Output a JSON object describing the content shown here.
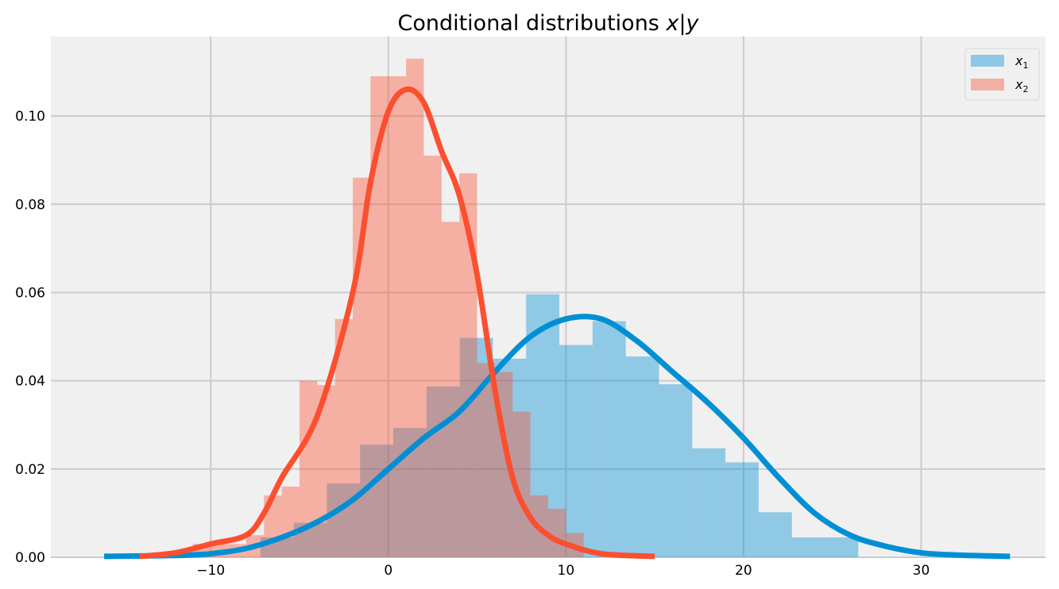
{
  "chart_data": {
    "type": "histogram+kde",
    "title": "Conditional distributions x|y",
    "title_prefix": "Conditional distributions ",
    "title_math": "x|y",
    "xlabel": "",
    "ylabel": "",
    "xlim": [
      -19,
      37
    ],
    "ylim": [
      0,
      0.118
    ],
    "grid": true,
    "legend_position": "top-right",
    "x_ticks": [
      -10,
      0,
      10,
      20,
      30
    ],
    "x_tick_labels": [
      "−10",
      "0",
      "10",
      "20",
      "30"
    ],
    "y_ticks": [
      0.0,
      0.02,
      0.04,
      0.06,
      0.08,
      0.1
    ],
    "y_tick_labels": [
      "0.00",
      "0.02",
      "0.04",
      "0.06",
      "0.08",
      "0.10"
    ],
    "series": [
      {
        "name": "x1",
        "legend_symbol": "x",
        "legend_sub": "1",
        "color": "#008fd5",
        "bar_color": "#8fc8e6",
        "hist_bin_edges": [
          -7.2,
          -5.33,
          -3.46,
          -1.59,
          0.28,
          2.15,
          4.02,
          5.89,
          7.76,
          9.63,
          11.5,
          13.37,
          15.24,
          17.11,
          18.98,
          20.85,
          22.72,
          24.59,
          26.46
        ],
        "hist_values": [
          0.0045,
          0.0078,
          0.0167,
          0.0255,
          0.0293,
          0.0387,
          0.0497,
          0.045,
          0.0596,
          0.0481,
          0.0535,
          0.0455,
          0.0392,
          0.0247,
          0.0215,
          0.0102,
          0.0045,
          0.0045
        ],
        "kde_x": [
          -16,
          -12,
          -10,
          -8,
          -6,
          -4,
          -2,
          0,
          2,
          4,
          6,
          8,
          10,
          12,
          14,
          16,
          18,
          20,
          22,
          24,
          26,
          28,
          30,
          32,
          35
        ],
        "kde_y": [
          0.0002,
          0.0004,
          0.0008,
          0.002,
          0.0045,
          0.008,
          0.013,
          0.02,
          0.027,
          0.033,
          0.042,
          0.05,
          0.054,
          0.054,
          0.049,
          0.042,
          0.035,
          0.027,
          0.018,
          0.01,
          0.005,
          0.0025,
          0.001,
          0.0005,
          0.0002
        ]
      },
      {
        "name": "x2",
        "legend_symbol": "x",
        "legend_sub": "2",
        "color": "#fc4f30",
        "bar_color": "#f2b0a4",
        "hist_bin_edges": [
          -11,
          -10,
          -9,
          -8,
          -7,
          -6,
          -5,
          -4,
          -3,
          -2,
          -1,
          0,
          1,
          2,
          3,
          4,
          5,
          6,
          7,
          8,
          9,
          10,
          11
        ],
        "hist_values": [
          0.003,
          0.003,
          0.003,
          0.005,
          0.014,
          0.016,
          0.04,
          0.039,
          0.054,
          0.086,
          0.109,
          0.109,
          0.113,
          0.091,
          0.076,
          0.087,
          0.044,
          0.042,
          0.033,
          0.014,
          0.011,
          0.0055
        ],
        "kde_x": [
          -14,
          -12,
          -10,
          -8,
          -7,
          -6,
          -4,
          -2,
          -1,
          0,
          1,
          2,
          3,
          4,
          5,
          6,
          7,
          8,
          9,
          10,
          12,
          15
        ],
        "kde_y": [
          0.0002,
          0.001,
          0.003,
          0.005,
          0.01,
          0.018,
          0.032,
          0.06,
          0.085,
          0.101,
          0.106,
          0.103,
          0.092,
          0.082,
          0.064,
          0.038,
          0.018,
          0.009,
          0.005,
          0.003,
          0.0008,
          0.0002
        ]
      }
    ],
    "colors": {
      "plot_bg": "#f0f0f0",
      "grid": "#cbcbcb",
      "page_bg": "#ffffff"
    }
  }
}
